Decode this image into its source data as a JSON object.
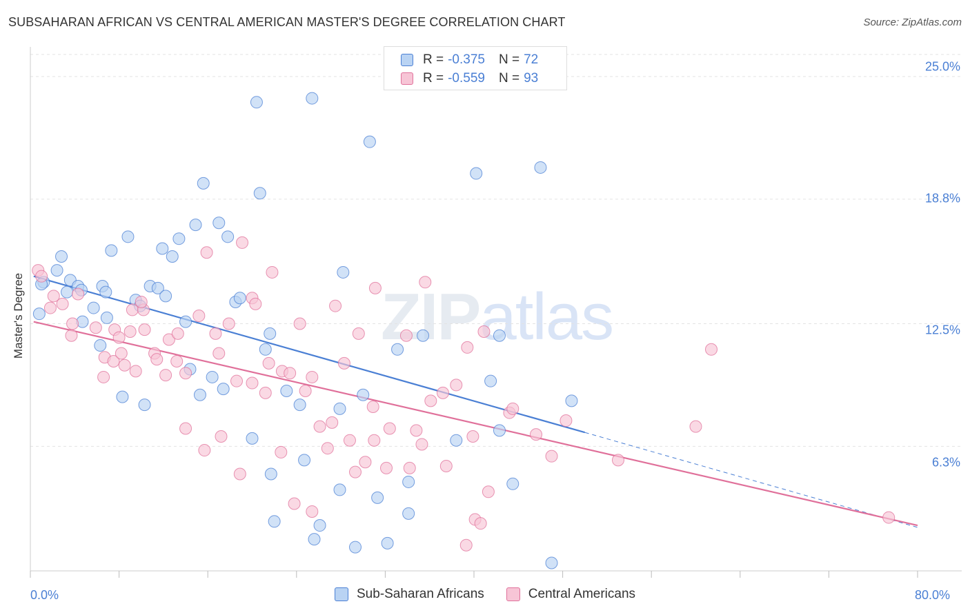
{
  "title": "SUBSAHARAN AFRICAN VS CENTRAL AMERICAN MASTER'S DEGREE CORRELATION CHART",
  "source": "Source: ZipAtlas.com",
  "watermark": {
    "zip": "ZIP",
    "atlas": "atlas"
  },
  "colors": {
    "blue": "#4a7fd4",
    "blue_fill": "#b9d3f3",
    "pink": "#e0709a",
    "pink_fill": "#f7c5d6",
    "grid": "#e3e3e3"
  },
  "legend_top": [
    {
      "r_label": "R =",
      "r_value": "-0.375",
      "n_label": "N =",
      "n_value": "72"
    },
    {
      "r_label": "R =",
      "r_value": "-0.559",
      "n_label": "N =",
      "n_value": "93"
    }
  ],
  "legend_bottom": [
    "Sub-Saharan Africans",
    "Central Americans"
  ],
  "chart_data": {
    "type": "scatter",
    "title": "SUBSAHARAN AFRICAN VS CENTRAL AMERICAN MASTER'S DEGREE CORRELATION CHART",
    "xlabel": "",
    "ylabel": "Master's Degree",
    "xlim": [
      0,
      80
    ],
    "ylim": [
      0,
      26.5
    ],
    "x_tick_labels": [
      "0.0%",
      "80.0%"
    ],
    "y_ticks": [
      6.3,
      12.5,
      18.8,
      25.0
    ],
    "y_tick_labels": [
      "6.3%",
      "12.5%",
      "18.8%",
      "25.0%"
    ],
    "grid": "horizontal dashed",
    "legend_placement": "bottom-center",
    "series": [
      {
        "name": "Sub-Saharan Africans",
        "color": "#4a7fd4",
        "r": -0.375,
        "n": 72,
        "trend": {
          "x0": 0.3,
          "y0": 14.9,
          "x1": 50,
          "y1": 7.0,
          "dashed_to_x": 80,
          "dashed_to_y": 2.2
        },
        "points": [
          [
            20.4,
            23.7
          ],
          [
            25.4,
            23.9
          ],
          [
            30.6,
            21.7
          ],
          [
            40.2,
            20.1
          ],
          [
            46.0,
            20.4
          ],
          [
            15.6,
            19.6
          ],
          [
            20.7,
            19.1
          ],
          [
            14.9,
            17.5
          ],
          [
            17.0,
            17.6
          ],
          [
            8.8,
            16.9
          ],
          [
            13.4,
            16.8
          ],
          [
            17.8,
            16.9
          ],
          [
            7.3,
            16.2
          ],
          [
            11.9,
            16.3
          ],
          [
            12.8,
            15.9
          ],
          [
            2.8,
            15.9
          ],
          [
            28.2,
            15.1
          ],
          [
            2.4,
            15.2
          ],
          [
            1.2,
            14.6
          ],
          [
            3.6,
            14.7
          ],
          [
            4.3,
            14.4
          ],
          [
            6.5,
            14.4
          ],
          [
            10.8,
            14.4
          ],
          [
            11.5,
            14.3
          ],
          [
            4.6,
            14.2
          ],
          [
            3.3,
            14.1
          ],
          [
            6.8,
            14.1
          ],
          [
            12.2,
            13.9
          ],
          [
            9.5,
            13.7
          ],
          [
            18.5,
            13.6
          ],
          [
            18.9,
            13.8
          ],
          [
            9.9,
            13.4
          ],
          [
            5.7,
            13.3
          ],
          [
            4.7,
            12.6
          ],
          [
            6.9,
            12.8
          ],
          [
            14.0,
            12.6
          ],
          [
            21.6,
            12.0
          ],
          [
            35.4,
            11.9
          ],
          [
            42.3,
            11.9
          ],
          [
            6.3,
            11.4
          ],
          [
            21.2,
            11.2
          ],
          [
            33.1,
            11.2
          ],
          [
            14.4,
            10.2
          ],
          [
            16.4,
            9.8
          ],
          [
            41.5,
            9.6
          ],
          [
            17.4,
            9.2
          ],
          [
            15.3,
            8.9
          ],
          [
            8.3,
            8.8
          ],
          [
            23.1,
            9.1
          ],
          [
            30.0,
            8.9
          ],
          [
            10.3,
            8.4
          ],
          [
            24.3,
            8.4
          ],
          [
            27.9,
            8.2
          ],
          [
            48.8,
            8.6
          ],
          [
            42.3,
            7.1
          ],
          [
            20.0,
            6.7
          ],
          [
            38.4,
            6.6
          ],
          [
            24.7,
            5.6
          ],
          [
            21.7,
            4.9
          ],
          [
            34.1,
            4.5
          ],
          [
            43.5,
            4.4
          ],
          [
            27.9,
            4.1
          ],
          [
            31.3,
            3.7
          ],
          [
            34.1,
            2.9
          ],
          [
            22.0,
            2.5
          ],
          [
            26.1,
            2.3
          ],
          [
            25.6,
            1.6
          ],
          [
            29.3,
            1.2
          ],
          [
            32.2,
            1.4
          ],
          [
            47.0,
            0.4
          ],
          [
            1.0,
            14.5
          ],
          [
            0.8,
            13.0
          ]
        ]
      },
      {
        "name": "Central Americans",
        "color": "#e0709a",
        "r": -0.559,
        "n": 93,
        "trend": {
          "x0": 0.3,
          "y0": 12.6,
          "x1": 80,
          "y1": 2.3
        },
        "points": [
          [
            0.7,
            15.2
          ],
          [
            1.0,
            14.9
          ],
          [
            2.1,
            13.9
          ],
          [
            2.9,
            13.5
          ],
          [
            1.8,
            13.3
          ],
          [
            4.3,
            14.0
          ],
          [
            3.8,
            12.5
          ],
          [
            5.9,
            12.3
          ],
          [
            7.6,
            12.2
          ],
          [
            3.7,
            11.9
          ],
          [
            8.0,
            11.8
          ],
          [
            9.0,
            12.1
          ],
          [
            10.3,
            12.2
          ],
          [
            6.7,
            10.8
          ],
          [
            7.5,
            10.6
          ],
          [
            8.2,
            11.0
          ],
          [
            6.6,
            9.8
          ],
          [
            8.5,
            10.4
          ],
          [
            9.5,
            10.1
          ],
          [
            9.2,
            13.2
          ],
          [
            10.2,
            13.2
          ],
          [
            10.0,
            13.6
          ],
          [
            11.2,
            11.0
          ],
          [
            11.4,
            10.7
          ],
          [
            12.2,
            9.9
          ],
          [
            12.5,
            11.7
          ],
          [
            13.3,
            12.0
          ],
          [
            13.2,
            10.6
          ],
          [
            14.0,
            10.0
          ],
          [
            15.2,
            12.9
          ],
          [
            15.9,
            16.1
          ],
          [
            16.7,
            12.0
          ],
          [
            17.0,
            11.0
          ],
          [
            17.9,
            12.5
          ],
          [
            18.6,
            9.6
          ],
          [
            19.1,
            16.6
          ],
          [
            20.0,
            13.8
          ],
          [
            20.3,
            13.5
          ],
          [
            21.5,
            10.5
          ],
          [
            21.2,
            9.0
          ],
          [
            21.8,
            15.1
          ],
          [
            22.7,
            10.1
          ],
          [
            23.4,
            10.0
          ],
          [
            24.3,
            12.5
          ],
          [
            24.8,
            9.1
          ],
          [
            25.4,
            9.8
          ],
          [
            26.1,
            7.3
          ],
          [
            27.5,
            13.4
          ],
          [
            27.2,
            7.5
          ],
          [
            28.3,
            10.5
          ],
          [
            28.8,
            6.6
          ],
          [
            29.6,
            12.0
          ],
          [
            30.2,
            5.5
          ],
          [
            31.1,
            14.3
          ],
          [
            32.1,
            5.2
          ],
          [
            32.4,
            7.2
          ],
          [
            33.9,
            11.9
          ],
          [
            34.2,
            5.2
          ],
          [
            34.8,
            7.1
          ],
          [
            35.6,
            14.6
          ],
          [
            35.3,
            6.4
          ],
          [
            36.1,
            8.6
          ],
          [
            37.2,
            9.0
          ],
          [
            37.5,
            5.3
          ],
          [
            38.4,
            9.4
          ],
          [
            39.4,
            11.3
          ],
          [
            39.9,
            6.8
          ],
          [
            40.1,
            2.6
          ],
          [
            40.9,
            12.1
          ],
          [
            41.3,
            4.0
          ],
          [
            43.2,
            8.0
          ],
          [
            43.5,
            8.2
          ],
          [
            45.6,
            6.9
          ],
          [
            47.0,
            5.8
          ],
          [
            48.3,
            7.6
          ],
          [
            53.0,
            5.6
          ],
          [
            60.0,
            7.3
          ],
          [
            61.4,
            11.2
          ],
          [
            77.4,
            2.7
          ],
          [
            23.8,
            3.4
          ],
          [
            25.4,
            3.0
          ],
          [
            40.6,
            2.4
          ],
          [
            39.3,
            1.3
          ],
          [
            15.7,
            6.1
          ],
          [
            18.9,
            4.9
          ],
          [
            22.6,
            6.0
          ],
          [
            14.0,
            7.2
          ],
          [
            17.2,
            6.8
          ],
          [
            31.0,
            6.6
          ],
          [
            30.9,
            8.3
          ],
          [
            29.3,
            5.0
          ],
          [
            26.8,
            6.2
          ],
          [
            20.0,
            9.5
          ]
        ]
      }
    ]
  }
}
